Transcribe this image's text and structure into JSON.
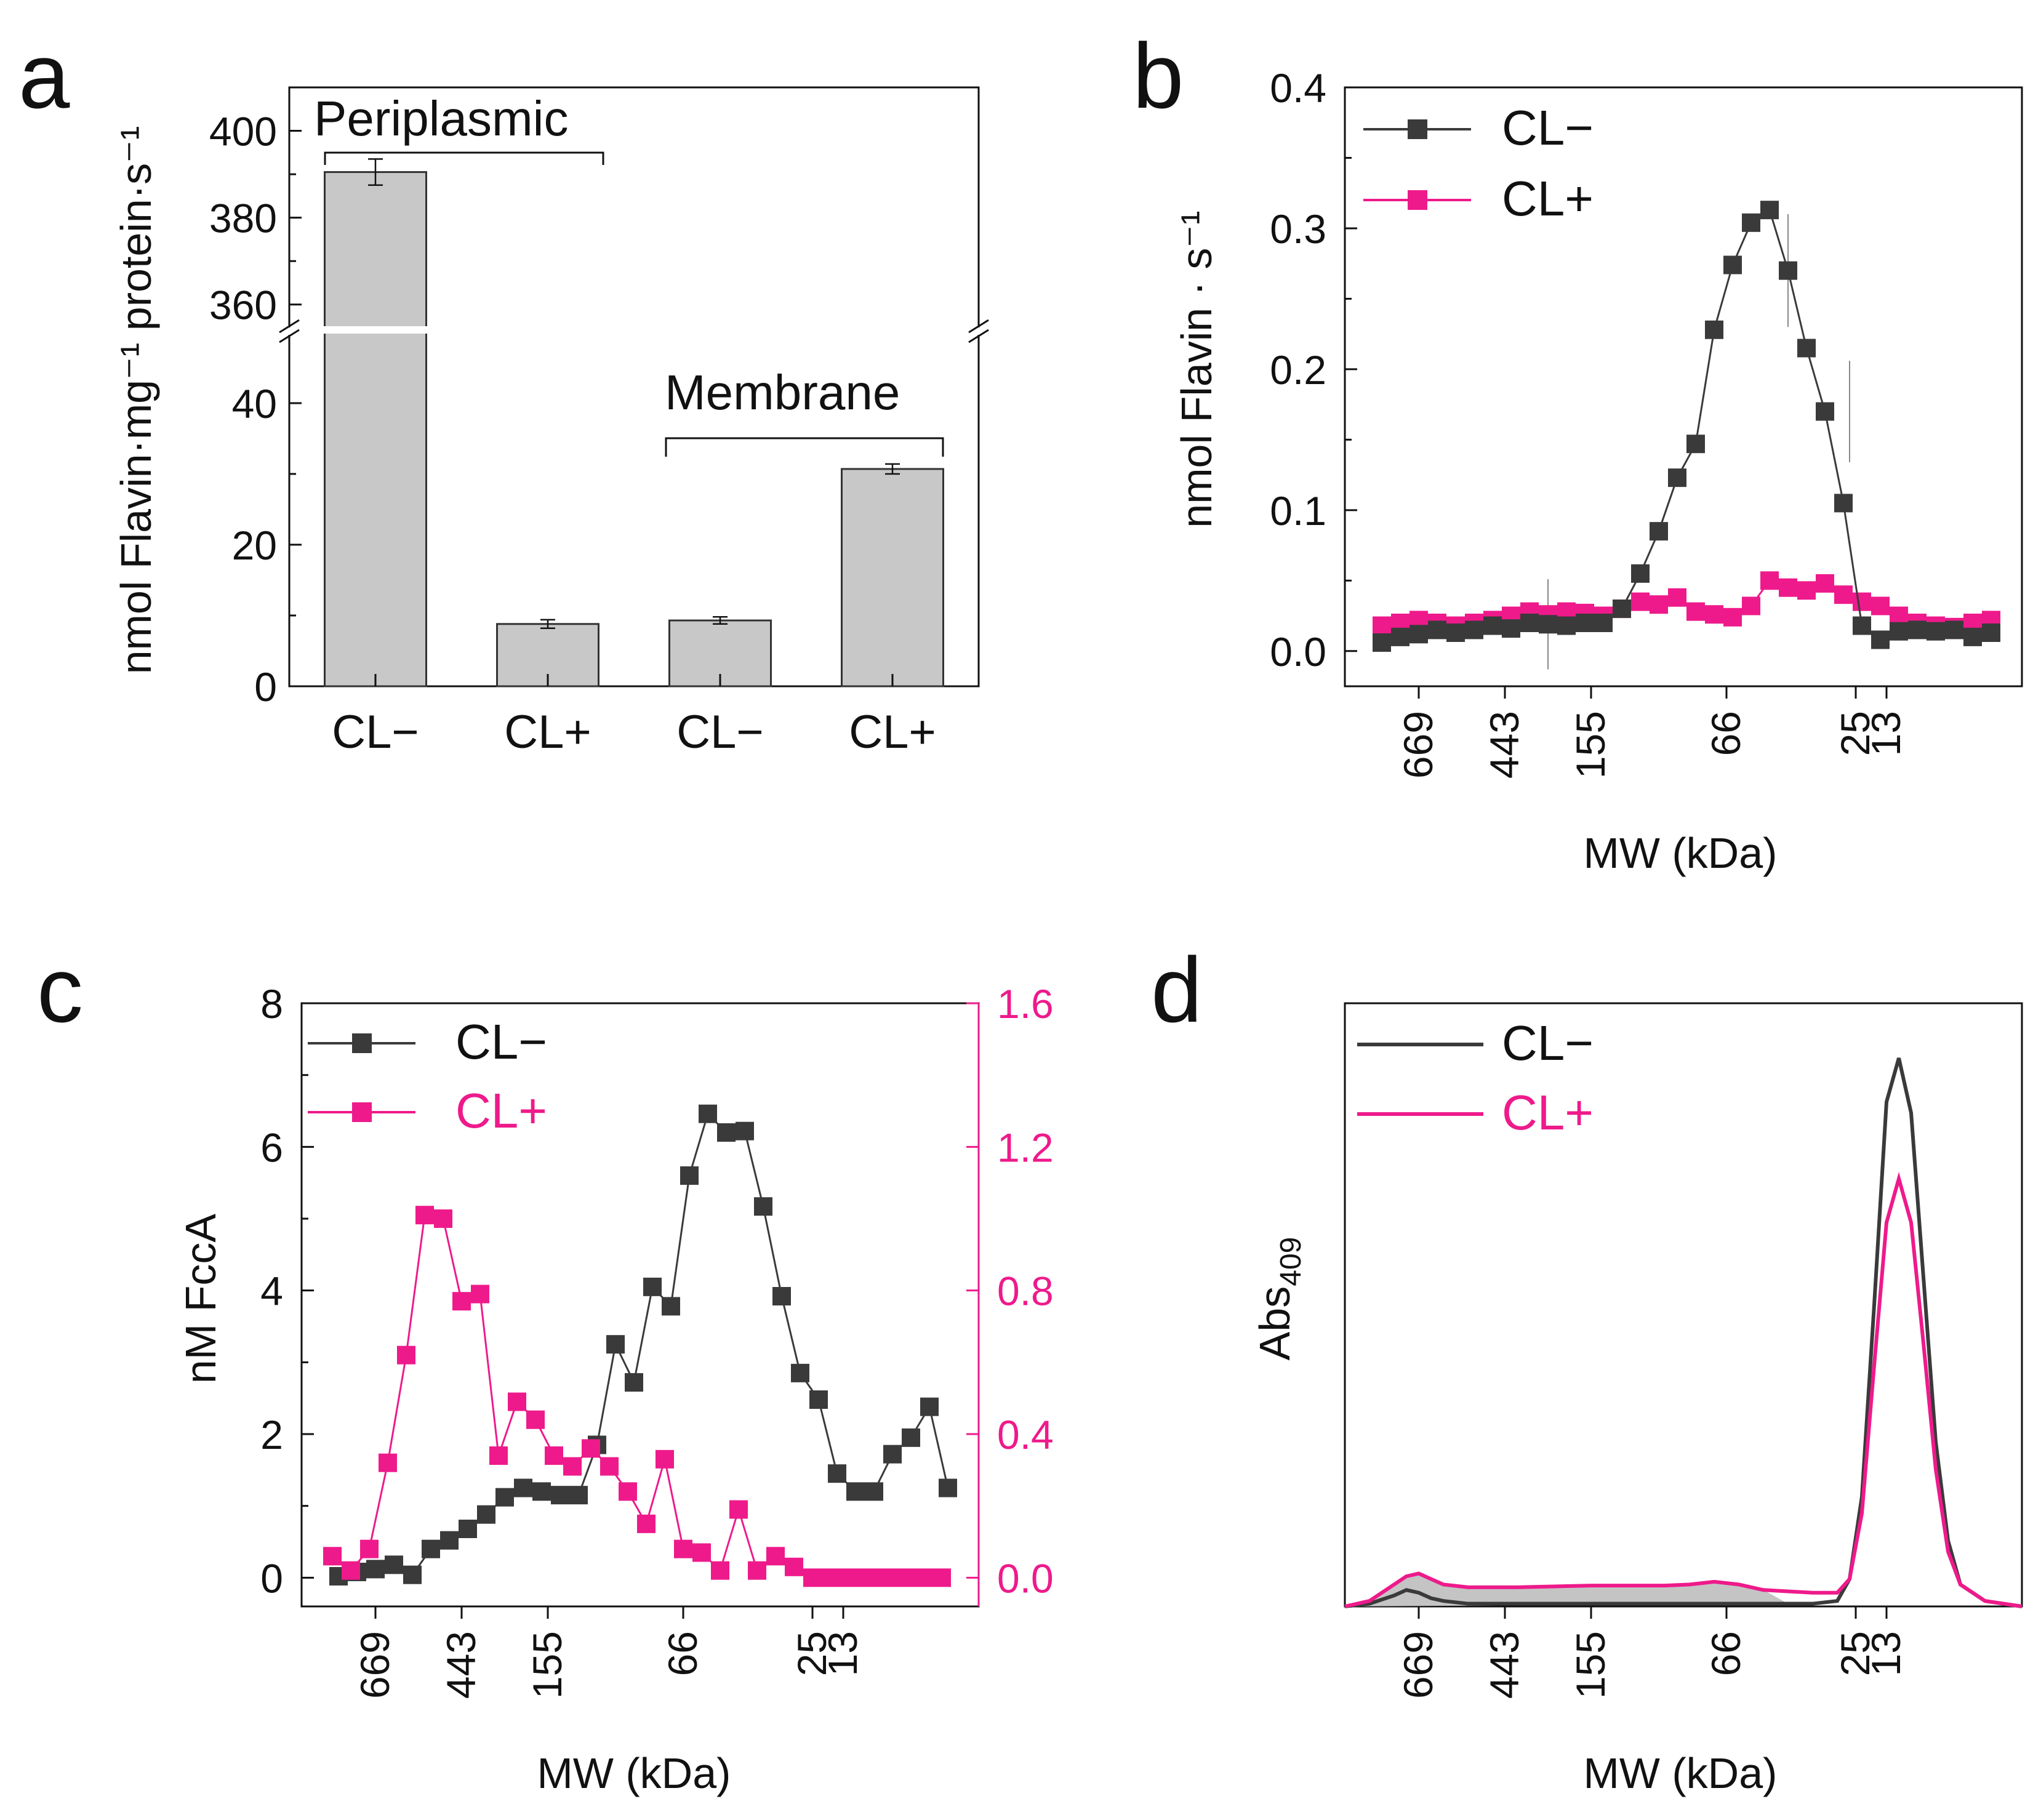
{
  "colors": {
    "dark": "#3a3a3a",
    "pink": "#ee1a8b",
    "bar": "#c8c8c8",
    "bar_edge": "#333333",
    "fill_area": "#c4c4c4"
  },
  "chart_data": [
    {
      "panel": "a",
      "type": "bar",
      "ylabel": "nmol Flavin·mg⁻¹ protein·s⁻¹",
      "categories": [
        "CL−",
        "CL+",
        "CL−",
        "CL+"
      ],
      "values": [
        390.5,
        8.8,
        9.3,
        30.7
      ],
      "errors": [
        3.0,
        0.6,
        0.5,
        0.7
      ],
      "groups": [
        {
          "label": "Periplasmic",
          "members": [
            0,
            1
          ]
        },
        {
          "label": "Membrane",
          "members": [
            2,
            3
          ]
        }
      ],
      "ylim_lower": [
        0,
        50
      ],
      "ylim_upper": [
        355,
        410
      ],
      "yticks_lower": [
        0,
        20,
        40
      ],
      "yticks_upper": [
        360,
        380,
        400
      ]
    },
    {
      "panel": "b",
      "type": "line",
      "xlabel": "MW (kDa)",
      "ylabel": "nmol Flavin · s⁻¹",
      "xlim": [
        0,
        55
      ],
      "ylim": [
        -0.025,
        0.4
      ],
      "yticks": [
        0.0,
        0.1,
        0.2,
        0.3,
        0.4
      ],
      "mw_markers": [
        {
          "label": "669",
          "x": 6
        },
        {
          "label": "443",
          "x": 13
        },
        {
          "label": "155",
          "x": 20
        },
        {
          "label": "66",
          "x": 31
        },
        {
          "label": "25",
          "x": 41.5
        },
        {
          "label": "13",
          "x": 44
        }
      ],
      "series": [
        {
          "name": "CL−",
          "color": "dark",
          "x": [
            3,
            4.5,
            6,
            7.5,
            9,
            10.5,
            12,
            13.5,
            15,
            16.5,
            18,
            19.5,
            21,
            22.5,
            24,
            25.5,
            27,
            28.5,
            30,
            31.5,
            33,
            34.5,
            36,
            37.5,
            39,
            40.5,
            42,
            43.5,
            45,
            46.5,
            48,
            49.5,
            51,
            52.5
          ],
          "y": [
            0.006,
            0.01,
            0.012,
            0.015,
            0.013,
            0.015,
            0.018,
            0.016,
            0.02,
            0.019,
            0.018,
            0.02,
            0.02,
            0.03,
            0.055,
            0.085,
            0.123,
            0.147,
            0.228,
            0.274,
            0.304,
            0.313,
            0.27,
            0.215,
            0.17,
            0.105,
            0.018,
            0.008,
            0.014,
            0.015,
            0.014,
            0.015,
            0.01,
            0.013
          ]
        },
        {
          "name": "CL+",
          "color": "pink",
          "x": [
            3,
            4.5,
            6,
            7.5,
            9,
            10.5,
            12,
            13.5,
            15,
            16.5,
            18,
            19.5,
            21,
            22.5,
            24,
            25.5,
            27,
            28.5,
            30,
            31.5,
            33,
            34.5,
            36,
            37.5,
            39,
            40.5,
            42,
            43.5,
            45,
            46.5,
            48,
            49.5,
            51,
            52.5
          ],
          "y": [
            0.018,
            0.02,
            0.022,
            0.02,
            0.018,
            0.02,
            0.022,
            0.025,
            0.028,
            0.026,
            0.028,
            0.027,
            0.025,
            0.03,
            0.035,
            0.033,
            0.038,
            0.028,
            0.026,
            0.024,
            0.032,
            0.05,
            0.045,
            0.043,
            0.048,
            0.04,
            0.035,
            0.032,
            0.025,
            0.02,
            0.018,
            0.017,
            0.02,
            0.022
          ]
        }
      ],
      "legend": {
        "position": "top-left",
        "entries": [
          "CL−",
          "CL+"
        ]
      }
    },
    {
      "panel": "c",
      "type": "line",
      "xlabel": "MW (kDa)",
      "ylabel": "nM FccA",
      "xlim": [
        0,
        55
      ],
      "ylim_left": [
        -0.4,
        8
      ],
      "ylim_right": [
        -0.08,
        1.6
      ],
      "yticks_left": [
        0,
        2,
        4,
        6,
        8
      ],
      "yticks_right": [
        0.0,
        0.4,
        0.8,
        1.2,
        1.6
      ],
      "mw_markers": [
        {
          "label": "669",
          "x": 6
        },
        {
          "label": "443",
          "x": 13
        },
        {
          "label": "155",
          "x": 20
        },
        {
          "label": "66",
          "x": 31
        },
        {
          "label": "25",
          "x": 41.5
        },
        {
          "label": "13",
          "x": 44
        }
      ],
      "series": [
        {
          "name": "CL−",
          "color": "dark",
          "axis": "left",
          "x": [
            3,
            4.5,
            6,
            7.5,
            9,
            10.5,
            12,
            13.5,
            15,
            16.5,
            18,
            19.5,
            21,
            22.5,
            24,
            25.5,
            27,
            28.5,
            30,
            31.5,
            33,
            34.5,
            36,
            37.5,
            39,
            40.5,
            42,
            43.5,
            45,
            46.5,
            48,
            49.5,
            51,
            52.5
          ],
          "y": [
            0.02,
            0.08,
            0.12,
            0.18,
            0.04,
            0.4,
            0.52,
            0.68,
            0.88,
            1.12,
            1.25,
            1.2,
            1.15,
            1.15,
            1.85,
            3.25,
            2.72,
            4.05,
            3.78,
            5.6,
            6.46,
            6.2,
            6.22,
            5.17,
            3.92,
            2.85,
            2.48,
            1.45,
            1.2,
            1.2,
            1.72,
            1.95,
            2.38,
            1.25
          ]
        },
        {
          "name": "CL+",
          "color": "pink",
          "axis": "right",
          "x": [
            2.5,
            4,
            5.5,
            7,
            8.5,
            10,
            11.5,
            13,
            14.5,
            16,
            17.5,
            19,
            20.5,
            22,
            23.5,
            25,
            26.5,
            28,
            29.5,
            31,
            32.5,
            34,
            35.5,
            37,
            38.5,
            40,
            41.5,
            43,
            44.5,
            46,
            47.5,
            49,
            50.5,
            52
          ],
          "y": [
            0.06,
            0.02,
            0.08,
            0.32,
            0.62,
            1.01,
            1.0,
            0.77,
            0.79,
            0.34,
            0.49,
            0.44,
            0.34,
            0.31,
            0.36,
            0.31,
            0.24,
            0.15,
            0.33,
            0.08,
            0.07,
            0.02,
            0.19,
            0.02,
            0.06,
            0.03,
            0.0,
            0.0,
            0.0,
            0.0,
            0.0,
            0.0,
            0.0,
            0.0
          ]
        }
      ],
      "legend": {
        "position": "top-left",
        "entries": [
          "CL−",
          "CL+"
        ]
      }
    },
    {
      "panel": "d",
      "type": "line",
      "xlabel": "MW (kDa)",
      "ylabel": "Abs409",
      "ylabel_main": "Abs",
      "ylabel_sub": "409",
      "xlim": [
        0,
        55
      ],
      "ylim": [
        0,
        1.1
      ],
      "mw_markers": [
        {
          "label": "669",
          "x": 6
        },
        {
          "label": "443",
          "x": 13
        },
        {
          "label": "155",
          "x": 20
        },
        {
          "label": "66",
          "x": 31
        },
        {
          "label": "25",
          "x": 41.5
        },
        {
          "label": "13",
          "x": 44
        }
      ],
      "series": [
        {
          "name": "CL−",
          "color": "dark",
          "x": [
            0,
            2,
            4,
            5,
            6,
            7,
            8,
            10,
            14,
            20,
            28,
            32,
            38,
            40,
            41,
            42,
            43,
            44,
            45,
            46,
            47,
            48,
            49,
            50,
            52,
            55
          ],
          "y": [
            0.0,
            0.005,
            0.02,
            0.03,
            0.025,
            0.015,
            0.01,
            0.005,
            0.005,
            0.005,
            0.005,
            0.005,
            0.005,
            0.01,
            0.05,
            0.2,
            0.55,
            0.92,
            1.0,
            0.9,
            0.6,
            0.3,
            0.12,
            0.04,
            0.01,
            0.0
          ]
        },
        {
          "name": "CL+",
          "color": "pink",
          "x": [
            0,
            2,
            4,
            5,
            6,
            7,
            8,
            10,
            14,
            20,
            26,
            28,
            30,
            32,
            34,
            38,
            40,
            41,
            42,
            43,
            44,
            45,
            46,
            47,
            48,
            49,
            50,
            52,
            55
          ],
          "y": [
            0.0,
            0.01,
            0.04,
            0.055,
            0.06,
            0.05,
            0.04,
            0.035,
            0.035,
            0.038,
            0.038,
            0.04,
            0.045,
            0.04,
            0.03,
            0.025,
            0.025,
            0.05,
            0.17,
            0.44,
            0.7,
            0.78,
            0.7,
            0.48,
            0.25,
            0.1,
            0.04,
            0.01,
            0.0
          ]
        }
      ],
      "legend": {
        "position": "top-left",
        "entries": [
          "CL−",
          "CL+"
        ]
      }
    }
  ]
}
